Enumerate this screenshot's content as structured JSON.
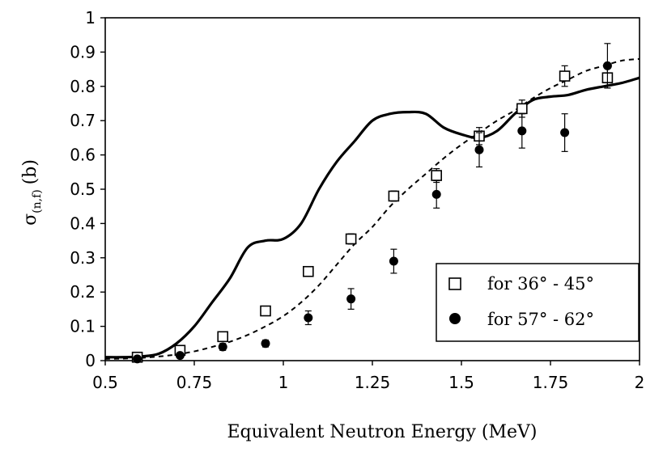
{
  "chart_data": {
    "type": "scatter",
    "title": "",
    "xlabel": "Equivalent Neutron Energy (MeV)",
    "ylabel_main": "σ",
    "ylabel_sub": "(n,f)",
    "ylabel_unit": "(b)",
    "xlim": [
      0.5,
      2
    ],
    "ylim": [
      0,
      1
    ],
    "x_ticks": [
      0.5,
      0.75,
      1,
      1.25,
      1.5,
      1.75,
      2
    ],
    "x_tick_labels": [
      "0.5",
      "0.75",
      "1",
      "1.25",
      "1.5",
      "1.75",
      "2"
    ],
    "y_ticks": [
      0,
      0.1,
      0.2,
      0.3,
      0.4,
      0.5,
      0.6,
      0.7,
      0.8,
      0.9,
      1
    ],
    "y_tick_labels": [
      "0",
      "0.1",
      "0.2",
      "0.3",
      "0.4",
      "0.5",
      "0.6",
      "0.7",
      "0.8",
      "0.9",
      "1"
    ],
    "grid": false,
    "legend_position": "lower-right",
    "series": [
      {
        "name": "for 36° - 45°",
        "marker": "open-square",
        "points": [
          {
            "x": 0.59,
            "y": 0.01,
            "err": 0.005
          },
          {
            "x": 0.71,
            "y": 0.03,
            "err": 0.005
          },
          {
            "x": 0.83,
            "y": 0.07,
            "err": 0.01
          },
          {
            "x": 0.95,
            "y": 0.145,
            "err": 0.01
          },
          {
            "x": 1.07,
            "y": 0.26,
            "err": 0.01
          },
          {
            "x": 1.19,
            "y": 0.355,
            "err": 0.015
          },
          {
            "x": 1.31,
            "y": 0.48,
            "err": 0.015
          },
          {
            "x": 1.43,
            "y": 0.54,
            "err": 0.02
          },
          {
            "x": 1.55,
            "y": 0.655,
            "err": 0.025
          },
          {
            "x": 1.67,
            "y": 0.735,
            "err": 0.025
          },
          {
            "x": 1.79,
            "y": 0.83,
            "err": 0.03
          },
          {
            "x": 1.91,
            "y": 0.825,
            "err": 0.03
          }
        ]
      },
      {
        "name": "for 57° - 62°",
        "marker": "filled-circle",
        "points": [
          {
            "x": 0.59,
            "y": 0.005,
            "err": 0.005
          },
          {
            "x": 0.71,
            "y": 0.015,
            "err": 0.005
          },
          {
            "x": 0.83,
            "y": 0.04,
            "err": 0.01
          },
          {
            "x": 0.95,
            "y": 0.05,
            "err": 0.01
          },
          {
            "x": 1.07,
            "y": 0.125,
            "err": 0.02
          },
          {
            "x": 1.19,
            "y": 0.18,
            "err": 0.03
          },
          {
            "x": 1.31,
            "y": 0.29,
            "err": 0.035
          },
          {
            "x": 1.43,
            "y": 0.485,
            "err": 0.04
          },
          {
            "x": 1.55,
            "y": 0.615,
            "err": 0.05
          },
          {
            "x": 1.67,
            "y": 0.67,
            "err": 0.05
          },
          {
            "x": 1.79,
            "y": 0.665,
            "err": 0.055
          },
          {
            "x": 1.91,
            "y": 0.86,
            "err": 0.065
          }
        ]
      }
    ],
    "curves": [
      {
        "style": "solid",
        "x": [
          0.5,
          0.55,
          0.6,
          0.65,
          0.7,
          0.75,
          0.8,
          0.85,
          0.9,
          0.95,
          1.0,
          1.05,
          1.1,
          1.15,
          1.2,
          1.25,
          1.3,
          1.35,
          1.4,
          1.45,
          1.5,
          1.55,
          1.6,
          1.65,
          1.7,
          1.75,
          1.8,
          1.85,
          1.9,
          1.95,
          2.0
        ],
        "y": [
          0.01,
          0.01,
          0.012,
          0.02,
          0.05,
          0.1,
          0.17,
          0.24,
          0.33,
          0.35,
          0.355,
          0.4,
          0.5,
          0.58,
          0.64,
          0.7,
          0.72,
          0.725,
          0.72,
          0.68,
          0.66,
          0.65,
          0.67,
          0.72,
          0.76,
          0.77,
          0.775,
          0.79,
          0.8,
          0.81,
          0.825
        ]
      },
      {
        "style": "dashed",
        "x": [
          0.5,
          0.55,
          0.6,
          0.65,
          0.7,
          0.75,
          0.8,
          0.85,
          0.9,
          0.95,
          1.0,
          1.05,
          1.1,
          1.15,
          1.2,
          1.25,
          1.3,
          1.35,
          1.4,
          1.45,
          1.5,
          1.55,
          1.6,
          1.65,
          1.7,
          1.75,
          1.8,
          1.85,
          1.9,
          1.95,
          2.0
        ],
        "y": [
          0.005,
          0.006,
          0.008,
          0.012,
          0.018,
          0.027,
          0.04,
          0.055,
          0.075,
          0.1,
          0.13,
          0.17,
          0.22,
          0.28,
          0.34,
          0.39,
          0.45,
          0.5,
          0.545,
          0.59,
          0.63,
          0.665,
          0.7,
          0.73,
          0.765,
          0.795,
          0.82,
          0.845,
          0.86,
          0.875,
          0.88
        ]
      }
    ]
  }
}
